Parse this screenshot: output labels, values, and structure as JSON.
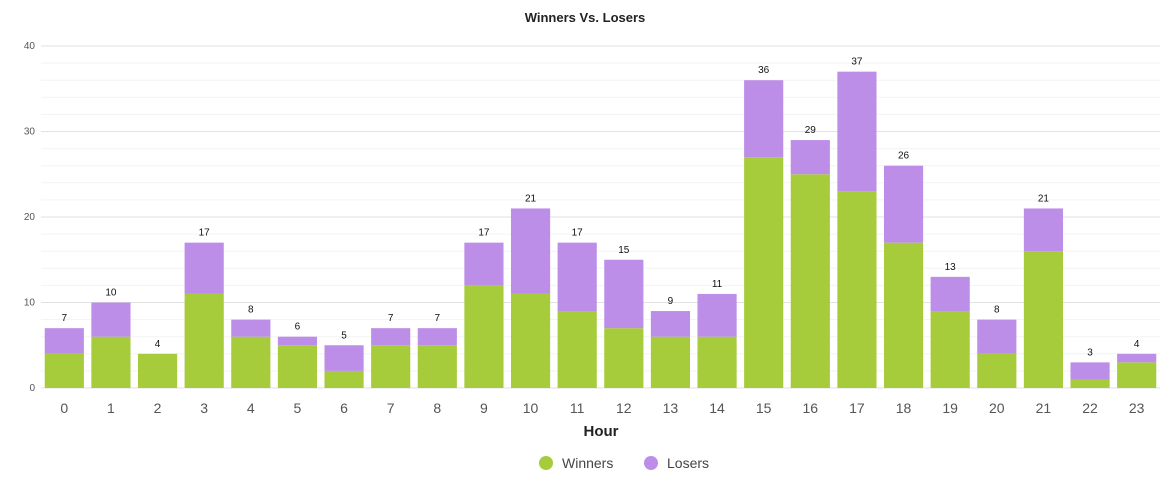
{
  "chart_data": {
    "type": "bar",
    "stacked": true,
    "title": "Winners Vs. Losers",
    "xlabel": "Hour",
    "ylabel": "",
    "ylim": [
      0,
      40
    ],
    "yticks": [
      0,
      10,
      20,
      30,
      40
    ],
    "grid": true,
    "legend_position": "bottom-center",
    "categories": [
      "0",
      "1",
      "2",
      "3",
      "4",
      "5",
      "6",
      "7",
      "8",
      "9",
      "10",
      "11",
      "12",
      "13",
      "14",
      "15",
      "16",
      "17",
      "18",
      "19",
      "20",
      "21",
      "22",
      "23"
    ],
    "series": [
      {
        "name": "Winners",
        "color": "#a6cc3c",
        "values": [
          4,
          6,
          4,
          11,
          6,
          5,
          2,
          5,
          5,
          12,
          11,
          9,
          7,
          6,
          6,
          27,
          25,
          23,
          17,
          9,
          4,
          16,
          1,
          3
        ]
      },
      {
        "name": "Losers",
        "color": "#bd8ee7",
        "values": [
          3,
          4,
          0,
          6,
          2,
          1,
          3,
          2,
          2,
          5,
          10,
          8,
          8,
          3,
          5,
          9,
          4,
          14,
          9,
          4,
          4,
          5,
          2,
          1
        ]
      }
    ],
    "totals": [
      7,
      10,
      4,
      17,
      8,
      6,
      5,
      7,
      7,
      17,
      21,
      17,
      15,
      9,
      11,
      36,
      29,
      37,
      26,
      13,
      8,
      21,
      3,
      4
    ]
  }
}
